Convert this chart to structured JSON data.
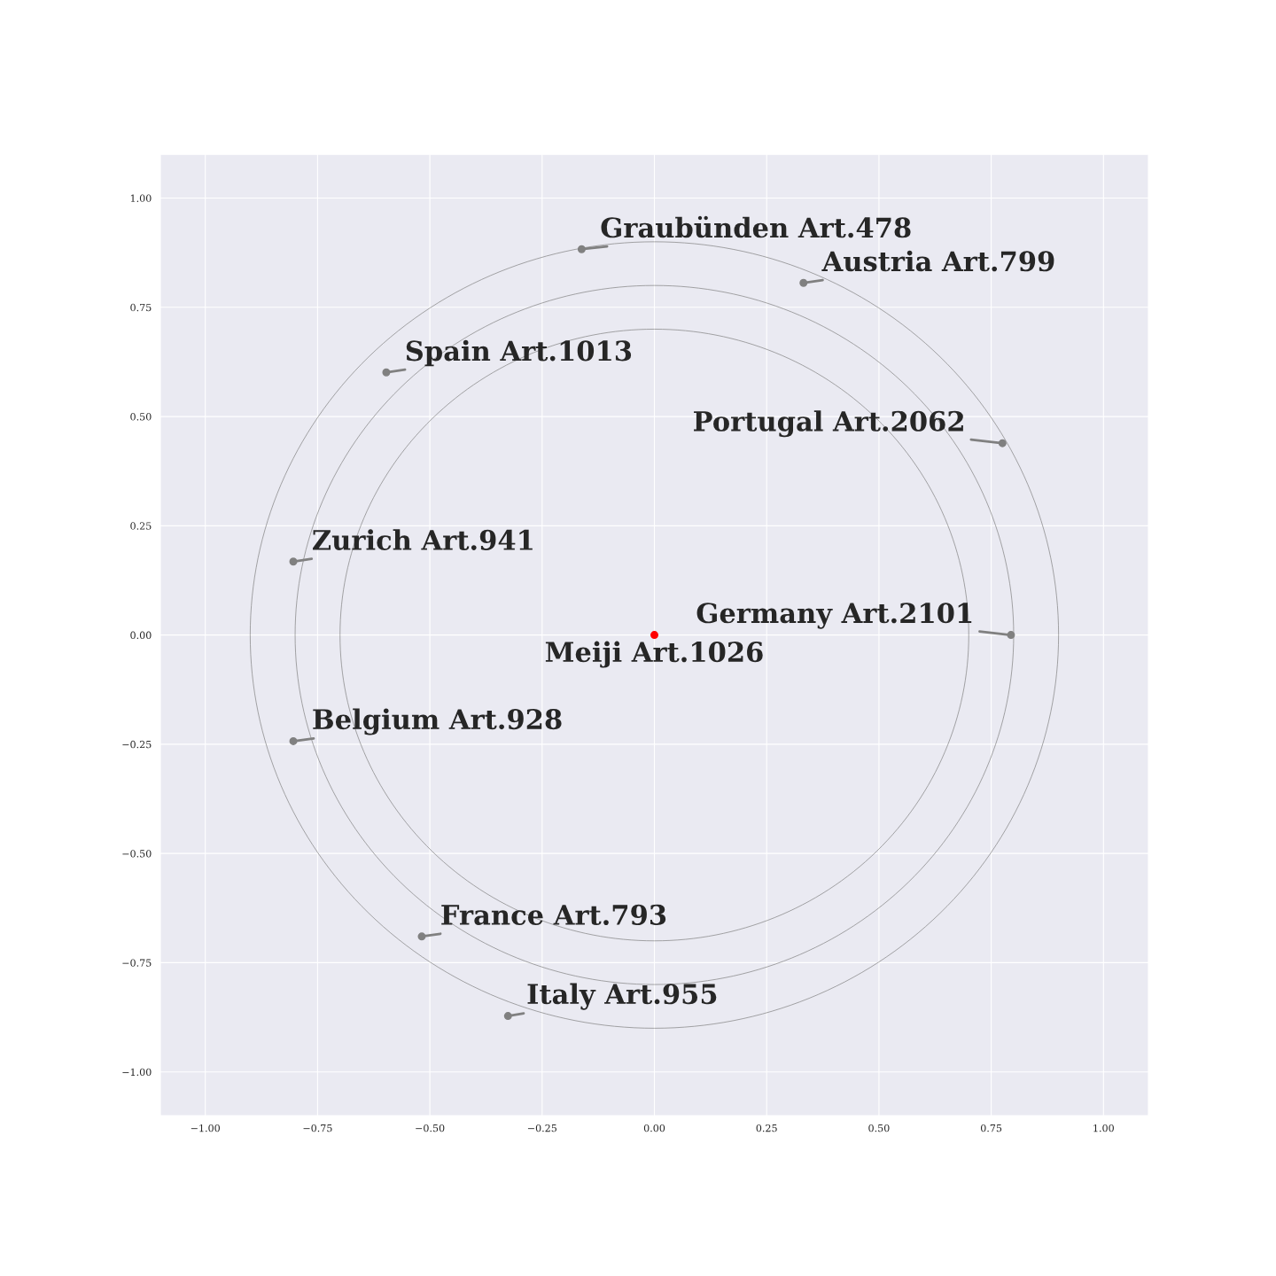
{
  "chart_data": {
    "type": "scatter",
    "xlim": [
      -1.1,
      1.1
    ],
    "ylim": [
      -1.1,
      1.1
    ],
    "xticks": [
      {
        "value": -1,
        "label": "−1.00"
      },
      {
        "value": -0.75,
        "label": "−0.75"
      },
      {
        "value": -0.5,
        "label": "−0.50"
      },
      {
        "value": -0.25,
        "label": "−0.25"
      },
      {
        "value": 0,
        "label": "0.00"
      },
      {
        "value": 0.25,
        "label": "0.25"
      },
      {
        "value": 0.5,
        "label": "0.50"
      },
      {
        "value": 0.75,
        "label": "0.75"
      },
      {
        "value": 1,
        "label": "1.00"
      }
    ],
    "yticks": [
      {
        "value": -1,
        "label": "−1.00"
      },
      {
        "value": -0.75,
        "label": "−0.75"
      },
      {
        "value": -0.5,
        "label": "−0.50"
      },
      {
        "value": -0.25,
        "label": "−0.25"
      },
      {
        "value": 0,
        "label": "0.00"
      },
      {
        "value": 0.25,
        "label": "0.25"
      },
      {
        "value": 0.5,
        "label": "0.50"
      },
      {
        "value": 0.75,
        "label": "0.75"
      },
      {
        "value": 1,
        "label": "1.00"
      }
    ],
    "grid": true,
    "series": [
      {
        "marker": "circle",
        "x": [
          0,
          -0.162,
          0.332,
          -0.597,
          0.775,
          -0.804,
          0.794,
          -0.804,
          -0.518,
          -0.326
        ],
        "values": [
          0,
          0.883,
          0.806,
          0.601,
          0.439,
          0.168,
          0,
          -0.243,
          -0.69,
          -0.872
        ],
        "colors": [
          "#ff0000",
          "#808080",
          "#808080",
          "#808080",
          "#808080",
          "#808080",
          "#808080",
          "#808080",
          "#808080",
          "#808080"
        ]
      }
    ],
    "annotations": [
      {
        "text": "Meiji Art.1026",
        "x": 0,
        "y": 0
      },
      {
        "text": "Graubünden Art.478",
        "x": -0.162,
        "y": 0.883
      },
      {
        "text": "Austria Art.799",
        "x": 0.332,
        "y": 0.806
      },
      {
        "text": "Spain Art.1013",
        "x": -0.597,
        "y": 0.601
      },
      {
        "text": "Portugal Art.2062",
        "x": 0.775,
        "y": 0.439
      },
      {
        "text": "Zurich Art.941",
        "x": -0.804,
        "y": 0.168
      },
      {
        "text": "Germany Art.2101",
        "x": 0.794,
        "y": 0
      },
      {
        "text": "Belgium Art.928",
        "x": -0.804,
        "y": -0.243
      },
      {
        "text": "France Art.793",
        "x": -0.518,
        "y": -0.69
      },
      {
        "text": "Italy Art.955",
        "x": -0.326,
        "y": -0.872
      }
    ]
  }
}
